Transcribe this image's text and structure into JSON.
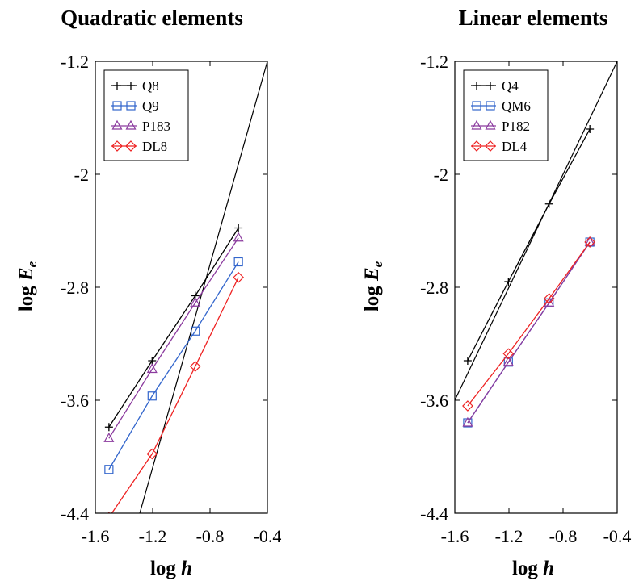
{
  "chart_data": [
    {
      "type": "line",
      "title": "Quadratic elements",
      "xlabel": "log h",
      "ylabel": "log E_e",
      "xlabel_main": "log ",
      "xlabel_var": "h",
      "ylabel_main": "log ",
      "ylabel_var": "E",
      "ylabel_sub": "e",
      "xlim": [
        -1.6,
        -0.4
      ],
      "ylim": [
        -4.4,
        -1.2
      ],
      "xticks": [
        -1.6,
        -1.2,
        -0.8,
        -0.4
      ],
      "xtick_labels": [
        "-1.6",
        "-1.2",
        "-0.8",
        "-0.4"
      ],
      "yticks": [
        -4.4,
        -3.6,
        -2.8,
        -2.0,
        -1.2
      ],
      "ytick_labels": [
        "-4.4",
        "-3.6",
        "-2.8",
        "-2",
        "-1.2"
      ],
      "grid": false,
      "legend_position": "top-left",
      "reference_line": {
        "x": [
          -1.29,
          -0.4
        ],
        "y": [
          -4.4,
          -1.2
        ],
        "color": "#000000"
      },
      "series": [
        {
          "name": "Q8",
          "marker": "plus",
          "color": "#000000",
          "x": [
            -1.505,
            -1.204,
            -0.903,
            -0.602
          ],
          "y": [
            -3.79,
            -3.32,
            -2.86,
            -2.38
          ]
        },
        {
          "name": "Q9",
          "marker": "square",
          "color": "#3366cc",
          "x": [
            -1.505,
            -1.204,
            -0.903,
            -0.602
          ],
          "y": [
            -4.09,
            -3.57,
            -3.11,
            -2.62
          ]
        },
        {
          "name": "P183",
          "marker": "triangle",
          "color": "#8b3a9e",
          "x": [
            -1.505,
            -1.204,
            -0.903,
            -0.602
          ],
          "y": [
            -3.87,
            -3.38,
            -2.91,
            -2.45
          ]
        },
        {
          "name": "DL8",
          "marker": "diamond",
          "color": "#ee2222",
          "x": [
            -1.505,
            -1.204,
            -0.903,
            -0.602
          ],
          "y": [
            -4.43,
            -3.98,
            -3.36,
            -2.73
          ]
        }
      ]
    },
    {
      "type": "line",
      "title": "Linear elements",
      "xlabel": "log h",
      "ylabel": "log E_e",
      "xlabel_main": "log ",
      "xlabel_var": "h",
      "ylabel_main": "log ",
      "ylabel_var": "E",
      "ylabel_sub": "e",
      "xlim": [
        -1.6,
        -0.4
      ],
      "ylim": [
        -4.4,
        -1.2
      ],
      "xticks": [
        -1.6,
        -1.2,
        -0.8,
        -0.4
      ],
      "xtick_labels": [
        "-1.6",
        "-1.2",
        "-0.8",
        "-0.4"
      ],
      "yticks": [
        -4.4,
        -3.6,
        -2.8,
        -2.0,
        -1.2
      ],
      "ytick_labels": [
        "-4.4",
        "-3.6",
        "-2.8",
        "-2",
        "-1.2"
      ],
      "grid": false,
      "legend_position": "top-left",
      "reference_line": {
        "x": [
          -1.6,
          -0.4
        ],
        "y": [
          -3.6,
          -1.2
        ],
        "color": "#000000"
      },
      "series": [
        {
          "name": "Q4",
          "marker": "plus",
          "color": "#000000",
          "x": [
            -1.505,
            -1.204,
            -0.903,
            -0.602
          ],
          "y": [
            -3.32,
            -2.76,
            -2.21,
            -1.68
          ]
        },
        {
          "name": "QM6",
          "marker": "square",
          "color": "#3366cc",
          "x": [
            -1.505,
            -1.204,
            -0.903,
            -0.602
          ],
          "y": [
            -3.76,
            -3.33,
            -2.91,
            -2.48
          ]
        },
        {
          "name": "P182",
          "marker": "triangle",
          "color": "#8b3a9e",
          "x": [
            -1.505,
            -1.204,
            -0.903,
            -0.602
          ],
          "y": [
            -3.76,
            -3.33,
            -2.91,
            -2.48
          ]
        },
        {
          "name": "DL4",
          "marker": "diamond",
          "color": "#ee2222",
          "x": [
            -1.505,
            -1.204,
            -0.903,
            -0.602
          ],
          "y": [
            -3.64,
            -3.27,
            -2.88,
            -2.48
          ]
        }
      ]
    }
  ]
}
